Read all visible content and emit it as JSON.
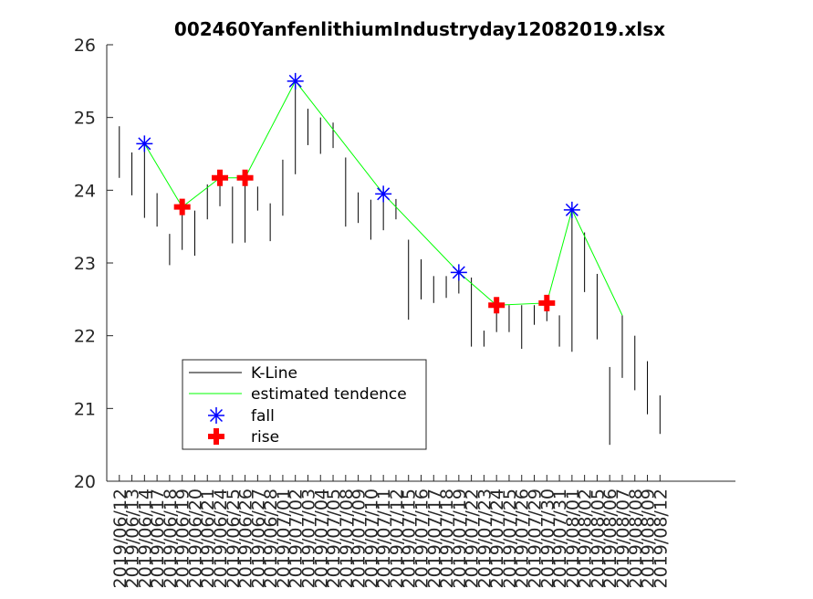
{
  "chart_data": {
    "type": "kline",
    "title": "002460YanfenlithiumIndustryday12082019.xlsx",
    "xlim": [
      0,
      50
    ],
    "ylim": [
      20,
      26
    ],
    "yticks": [
      20,
      21,
      22,
      23,
      24,
      25,
      26
    ],
    "xticks": [
      {
        "value": 1,
        "label": "2019/06/12"
      },
      {
        "value": 2,
        "label": "2019/06/13"
      },
      {
        "value": 3,
        "label": "2019/06/14"
      },
      {
        "value": 4,
        "label": "2019/06/17"
      },
      {
        "value": 5,
        "label": "2019/06/18"
      },
      {
        "value": 6,
        "label": "2019/06/19"
      },
      {
        "value": 7,
        "label": "2019/06/20"
      },
      {
        "value": 8,
        "label": "2019/06/21"
      },
      {
        "value": 9,
        "label": "2019/06/24"
      },
      {
        "value": 10,
        "label": "2019/06/25"
      },
      {
        "value": 11,
        "label": "2019/06/26"
      },
      {
        "value": 12,
        "label": "2019/06/27"
      },
      {
        "value": 13,
        "label": "2019/06/28"
      },
      {
        "value": 14,
        "label": "2019/07/01"
      },
      {
        "value": 15,
        "label": "2019/07/02"
      },
      {
        "value": 16,
        "label": "2019/07/03"
      },
      {
        "value": 17,
        "label": "2019/07/04"
      },
      {
        "value": 18,
        "label": "2019/07/05"
      },
      {
        "value": 19,
        "label": "2019/07/08"
      },
      {
        "value": 20,
        "label": "2019/07/09"
      },
      {
        "value": 21,
        "label": "2019/07/10"
      },
      {
        "value": 22,
        "label": "2019/07/11"
      },
      {
        "value": 23,
        "label": "2019/07/12"
      },
      {
        "value": 24,
        "label": "2019/07/15"
      },
      {
        "value": 25,
        "label": "2019/07/16"
      },
      {
        "value": 26,
        "label": "2019/07/17"
      },
      {
        "value": 27,
        "label": "2019/07/18"
      },
      {
        "value": 28,
        "label": "2019/07/19"
      },
      {
        "value": 29,
        "label": "2019/07/22"
      },
      {
        "value": 30,
        "label": "2019/07/23"
      },
      {
        "value": 31,
        "label": "2019/07/24"
      },
      {
        "value": 32,
        "label": "2019/07/25"
      },
      {
        "value": 33,
        "label": "2019/07/26"
      },
      {
        "value": 34,
        "label": "2019/07/29"
      },
      {
        "value": 35,
        "label": "2019/07/30"
      },
      {
        "value": 36,
        "label": "2019/07/31"
      },
      {
        "value": 37,
        "label": "2019/08/01"
      },
      {
        "value": 38,
        "label": "2019/08/02"
      },
      {
        "value": 39,
        "label": "2019/08/05"
      },
      {
        "value": 40,
        "label": "2019/08/06"
      },
      {
        "value": 41,
        "label": "2019/08/07"
      },
      {
        "value": 42,
        "label": "2019/08/08"
      },
      {
        "value": 43,
        "label": "2019/08/09"
      },
      {
        "value": 44,
        "label": "2019/08/12"
      }
    ],
    "kline": {
      "name": "K-Line",
      "color": "#000000",
      "high": [
        24.88,
        24.52,
        24.65,
        23.96,
        23.4,
        23.8,
        23.72,
        24.08,
        24.18,
        24.05,
        24.2,
        24.05,
        23.82,
        24.42,
        25.6,
        25.12,
        25.0,
        24.93,
        24.45,
        23.97,
        23.87,
        24.0,
        23.88,
        23.32,
        23.05,
        22.82,
        22.82,
        22.92,
        22.8,
        22.07,
        22.45,
        22.42,
        22.42,
        22.42,
        22.55,
        22.28,
        23.75,
        23.42,
        22.85,
        21.57,
        22.28,
        22.0,
        21.65,
        21.18
      ],
      "low": [
        24.17,
        23.93,
        23.62,
        23.5,
        22.97,
        23.18,
        23.1,
        23.6,
        23.78,
        23.27,
        23.28,
        23.72,
        23.3,
        23.65,
        24.22,
        24.62,
        24.5,
        24.58,
        23.5,
        23.55,
        23.32,
        23.45,
        23.6,
        22.22,
        22.5,
        22.45,
        22.52,
        22.58,
        21.85,
        21.85,
        22.05,
        22.05,
        21.82,
        22.15,
        22.2,
        21.85,
        21.78,
        22.6,
        21.95,
        20.5,
        21.42,
        21.25,
        20.92,
        20.65
      ]
    },
    "tendence": {
      "name": "estimated tendence",
      "color": "#00ff00",
      "x": [
        3,
        6,
        9,
        11,
        15,
        22,
        28,
        31,
        35,
        37,
        41
      ],
      "values": [
        24.64,
        23.77,
        24.17,
        24.17,
        25.5,
        23.95,
        22.87,
        22.42,
        22.45,
        23.73,
        22.28
      ]
    },
    "fall": {
      "name": "fall",
      "color": "#0000ff",
      "x": [
        3,
        15,
        22,
        28,
        37
      ],
      "values": [
        24.64,
        25.5,
        23.95,
        22.87,
        23.73
      ]
    },
    "rise": {
      "name": "rise",
      "color": "#ff0000",
      "x": [
        6,
        9,
        11,
        31,
        35
      ],
      "values": [
        23.77,
        24.17,
        24.17,
        22.42,
        22.45
      ]
    }
  }
}
